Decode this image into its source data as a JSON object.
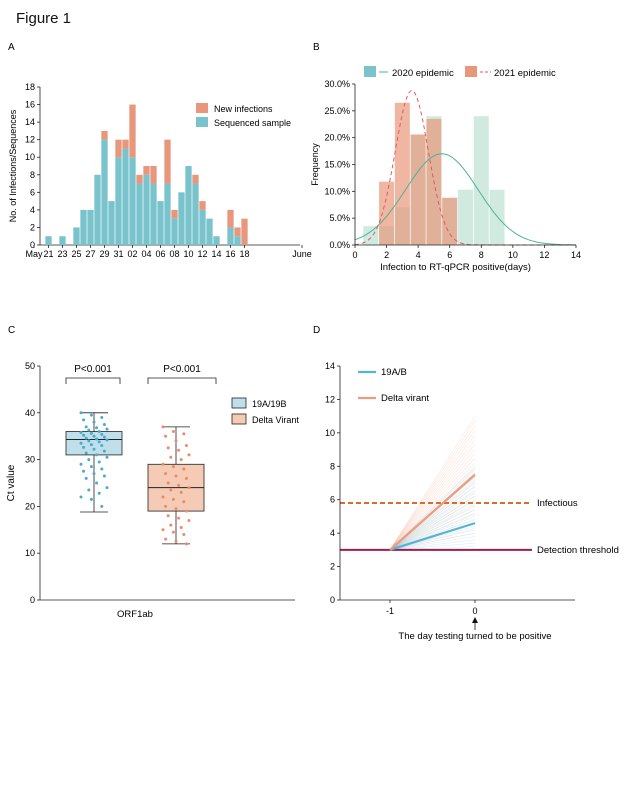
{
  "figure_title": "Figure 1",
  "colors": {
    "new_infections": "#E9977C",
    "sequenced": "#79C3CD",
    "epi2020_fill": "#A9D9C5",
    "epi2020_line": "#4BB39A",
    "epi2021_fill": "#E8977B",
    "epi2021_line": "#E45A5A",
    "box_a_fill": "#BFE0EA",
    "box_a_pts": "#4BA9CE",
    "box_b_fill": "#F5CBB6",
    "box_b_pts": "#EE8A62",
    "line_19ab": "#55B4D6",
    "line_delta": "#EE9A7C",
    "infectious": "#DB6B2D",
    "detection": "#A11B52"
  },
  "chart_data": [
    {
      "panel": "A",
      "type": "bar",
      "stacked": true,
      "ylabel": "No. of Infections/Sequences",
      "ylim": [
        0,
        18
      ],
      "yticks": [
        0,
        2,
        4,
        6,
        8,
        10,
        12,
        14,
        16,
        18
      ],
      "x_tick_labels": [
        "May",
        "21",
        "23",
        "25",
        "27",
        "29",
        "31",
        "02",
        "04",
        "06",
        "08",
        "10",
        "12",
        "14",
        "16",
        "18",
        "June"
      ],
      "days": [
        "May 21",
        "May 22",
        "May 23",
        "May 24",
        "May 25",
        "May 26",
        "May 27",
        "May 28",
        "May 29",
        "May 30",
        "May 31",
        "Jun 01",
        "Jun 02",
        "Jun 03",
        "Jun 04",
        "Jun 05",
        "Jun 06",
        "Jun 07",
        "Jun 08",
        "Jun 09",
        "Jun 10",
        "Jun 11",
        "Jun 12",
        "Jun 13",
        "Jun 14",
        "Jun 15",
        "Jun 16",
        "Jun 17",
        "Jun 18"
      ],
      "series": [
        {
          "name": "Sequenced sample",
          "values": [
            1,
            0,
            1,
            0,
            2,
            4,
            4,
            8,
            12,
            5,
            10,
            11,
            10,
            7,
            8,
            7,
            5,
            7,
            3,
            6,
            9,
            7,
            4,
            3,
            1,
            0,
            2,
            1,
            0
          ]
        },
        {
          "name": "New infections",
          "values": [
            0,
            0,
            0,
            0,
            0,
            0,
            0,
            0,
            1,
            0,
            2,
            1,
            6,
            1,
            1,
            2,
            0,
            5,
            1,
            0,
            0,
            1,
            1,
            0,
            0,
            0,
            2,
            1,
            3
          ]
        }
      ],
      "legend": "top-right"
    },
    {
      "panel": "B",
      "type": "bar",
      "xlabel": "Infection to RT-qPCR positive(days)",
      "ylabel": "Frequency",
      "ylim": [
        0,
        30
      ],
      "yticks": [
        "0.0%",
        "5.0%",
        "10.0%",
        "15.0%",
        "20.0%",
        "25.0%",
        "30.0%"
      ],
      "xlim": [
        0,
        14
      ],
      "xticks": [
        "0",
        "2",
        "4",
        "6",
        "8",
        "10",
        "12",
        "14"
      ],
      "series": [
        {
          "name": "2020 epidemic",
          "centers": [
            1,
            2,
            3,
            4,
            5,
            6,
            7,
            8,
            9
          ],
          "values": [
            3.5,
            3.5,
            7,
            20.5,
            24,
            8.8,
            10.3,
            24,
            10.3
          ],
          "curve": {
            "type": "normal",
            "mean": 5.5,
            "peak": 17
          }
        },
        {
          "name": "2021 epidemic",
          "centers": [
            2,
            3,
            4,
            5,
            6
          ],
          "values": [
            11.8,
            26.5,
            20.6,
            23.5,
            8.8
          ],
          "curve": {
            "type": "normal",
            "mean": 3.6,
            "peak": 28.8
          }
        }
      ],
      "legend": "top"
    },
    {
      "panel": "C",
      "type": "box",
      "xlabel": "ORF1ab",
      "ylabel": "Ct value",
      "ylim": [
        0,
        50
      ],
      "yticks": [
        "0",
        "10",
        "20",
        "30",
        "40",
        "50"
      ],
      "series": [
        {
          "name": "19A/19B",
          "min": 18.8,
          "q1": 31,
          "median": 34.3,
          "q3": 36,
          "max": 40,
          "points": [
            40,
            39.5,
            39,
            38.5,
            38,
            37.5,
            37,
            36.8,
            36.5,
            36.3,
            36,
            35.8,
            35.6,
            35.4,
            35.2,
            35,
            34.8,
            34.6,
            34.4,
            34.2,
            34,
            33.8,
            33.5,
            33.2,
            33,
            32.6,
            32.2,
            31.8,
            31.4,
            31,
            30.5,
            30,
            29.5,
            29,
            28.5,
            28,
            27.5,
            27,
            26.5,
            26,
            25,
            24,
            23.5,
            22.8,
            22,
            21.5,
            20
          ]
        },
        {
          "name": "Delta Virant",
          "min": 12,
          "q1": 19,
          "median": 24,
          "q3": 29,
          "max": 37,
          "points": [
            37,
            36,
            35.5,
            35,
            34,
            33,
            32.5,
            32,
            31,
            30.5,
            30,
            29,
            28.5,
            28,
            27,
            26.5,
            26,
            25,
            24.5,
            24,
            23.5,
            23,
            22,
            21.5,
            21,
            20,
            19.5,
            19,
            18,
            17.5,
            17,
            16,
            15.5,
            15,
            14.5,
            14,
            13,
            12.5,
            12
          ]
        }
      ],
      "annotations": [
        "P<0.001",
        "P<0.001"
      ],
      "legend": "right"
    },
    {
      "panel": "D",
      "type": "line",
      "xlabel": "The day testing turned to be positive",
      "ylim": [
        0,
        14
      ],
      "yticks": [
        "0",
        "2",
        "4",
        "6",
        "8",
        "10",
        "12",
        "14"
      ],
      "xticks": [
        "-1",
        "0"
      ],
      "series": [
        {
          "name": "19A/B",
          "x": [
            -1,
            0
          ],
          "y": [
            3,
            4.6
          ],
          "spread_end": [
            3,
            8
          ]
        },
        {
          "name": "Delta virant",
          "x": [
            -1,
            0
          ],
          "y": [
            3,
            7.5
          ],
          "spread_end": [
            4,
            11
          ]
        }
      ],
      "reference_lines": [
        {
          "name": "Infectious",
          "y": 5.8
        },
        {
          "name": "Detection threshold",
          "y": 3
        }
      ]
    }
  ]
}
